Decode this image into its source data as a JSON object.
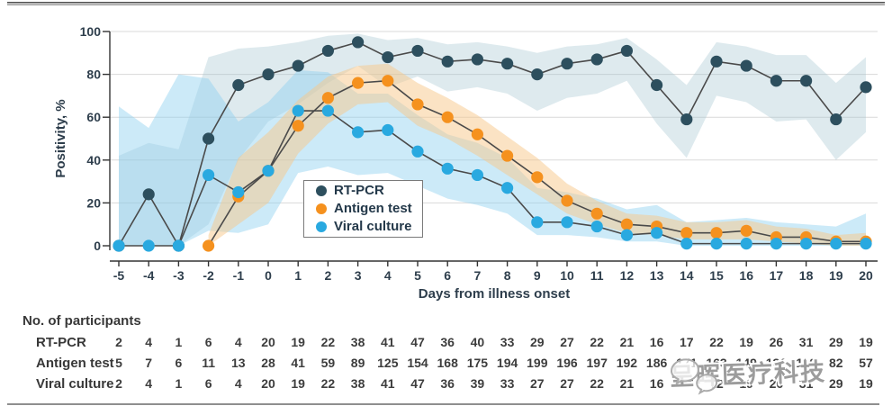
{
  "chart_data": {
    "type": "line",
    "title": "",
    "xlabel": "Days from illness onset",
    "ylabel": "Positivity, %",
    "ylim": [
      0,
      100
    ],
    "y_ticks": [
      0,
      20,
      40,
      60,
      80,
      100
    ],
    "grid": "horizontal",
    "legend_position": "inside-left-of-center",
    "x": [
      -5,
      -4,
      -3,
      -2,
      -1,
      0,
      1,
      2,
      3,
      4,
      5,
      6,
      7,
      8,
      9,
      10,
      11,
      12,
      13,
      14,
      15,
      16,
      17,
      18,
      19,
      20
    ],
    "series": [
      {
        "name": "RT-PCR",
        "color": "#2d4f5e",
        "line_color": "#4a4a4a",
        "values": [
          0,
          24,
          0,
          50,
          75,
          80,
          84,
          91,
          95,
          88,
          91,
          86,
          87,
          85,
          80,
          85,
          87,
          91,
          75,
          59,
          86,
          84,
          77,
          77,
          59,
          74
        ],
        "band": {
          "color": "#9fc2cd",
          "opacity": 0.34,
          "lower": [
            0,
            0,
            0,
            10,
            40,
            58,
            66,
            76,
            84,
            74,
            79,
            72,
            74,
            71,
            63,
            69,
            71,
            77,
            57,
            41,
            70,
            67,
            58,
            59,
            40,
            53
          ],
          "upper": [
            42,
            48,
            45,
            88,
            92,
            93,
            95,
            98,
            99,
            96,
            97,
            94,
            95,
            93,
            90,
            93,
            94,
            97,
            87,
            75,
            95,
            93,
            89,
            89,
            76,
            88
          ]
        }
      },
      {
        "name": "Antigen test",
        "color": "#f5911e",
        "line_color": "#4a4a4a",
        "values": [
          null,
          null,
          null,
          0,
          23,
          35,
          56,
          69,
          76,
          77,
          66,
          60,
          52,
          42,
          32,
          21,
          15,
          10,
          9,
          6,
          6,
          7,
          4,
          4,
          2,
          2
        ],
        "band": {
          "color": "#f7c789",
          "opacity": 0.5,
          "lower": [
            null,
            null,
            null,
            0,
            10,
            20,
            43,
            57,
            66,
            67,
            56,
            50,
            42,
            33,
            24,
            15,
            10,
            6,
            5,
            3,
            3,
            3,
            2,
            1,
            0,
            0
          ],
          "upper": [
            null,
            null,
            null,
            5,
            41,
            53,
            68,
            79,
            84,
            85,
            76,
            69,
            61,
            51,
            41,
            29,
            21,
            15,
            14,
            11,
            11,
            12,
            9,
            8,
            5,
            6
          ]
        }
      },
      {
        "name": "Viral culture",
        "color": "#29a9e0",
        "line_color": "#4a4a4a",
        "values": [
          0,
          0,
          0,
          33,
          25,
          35,
          63,
          63,
          53,
          54,
          44,
          36,
          33,
          27,
          11,
          11,
          9,
          5,
          6,
          1,
          1,
          1,
          1,
          1,
          1,
          1
        ],
        "band": {
          "color": "#8fd0f0",
          "opacity": 0.45,
          "lower": [
            0,
            0,
            0,
            7,
            6,
            10,
            34,
            37,
            33,
            34,
            28,
            22,
            19,
            15,
            5,
            5,
            4,
            2,
            2,
            0,
            0,
            0,
            0,
            0,
            0,
            0
          ],
          "upper": [
            65,
            55,
            80,
            78,
            58,
            67,
            82,
            81,
            71,
            71,
            61,
            52,
            48,
            41,
            27,
            25,
            22,
            17,
            19,
            11,
            12,
            13,
            11,
            10,
            9,
            15
          ]
        }
      }
    ]
  },
  "participants_table": {
    "title": "No. of participants",
    "columns": [
      -5,
      -4,
      -3,
      -2,
      -1,
      0,
      1,
      2,
      3,
      4,
      5,
      6,
      7,
      8,
      9,
      10,
      11,
      12,
      13,
      14,
      15,
      16,
      17,
      18,
      19,
      20
    ],
    "rows": [
      {
        "label": "RT-PCR",
        "values": [
          2,
          4,
          1,
          6,
          4,
          20,
          19,
          22,
          38,
          41,
          47,
          36,
          40,
          33,
          29,
          27,
          22,
          21,
          16,
          17,
          22,
          19,
          26,
          31,
          29,
          19
        ]
      },
      {
        "label": "Antigen test",
        "values": [
          5,
          7,
          6,
          11,
          13,
          28,
          41,
          59,
          89,
          125,
          154,
          168,
          175,
          194,
          199,
          196,
          197,
          192,
          186,
          171,
          163,
          149,
          131,
          110,
          82,
          57
        ]
      },
      {
        "label": "Viral culture",
        "values": [
          2,
          4,
          1,
          6,
          4,
          20,
          19,
          22,
          38,
          41,
          47,
          36,
          39,
          33,
          27,
          27,
          22,
          21,
          16,
          17,
          22,
          19,
          26,
          31,
          29,
          19
        ]
      }
    ]
  },
  "watermark": {
    "icon": "wechat-icon",
    "text": "呈晖医疗科技"
  },
  "styles": {
    "grid_color": "#d9d9d9",
    "axis_color": "#333333",
    "tick_label_color": "#2e3e4c"
  }
}
